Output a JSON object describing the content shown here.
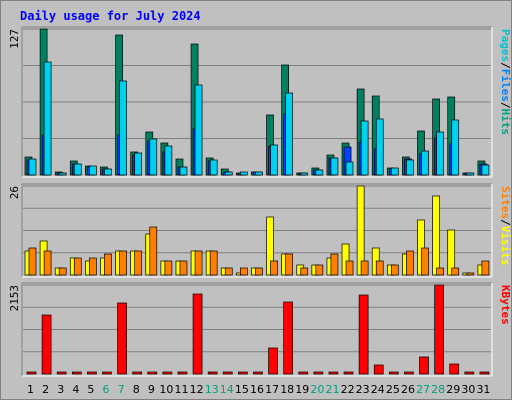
{
  "chart_data": {
    "type": "bar",
    "title": "Daily usage for July 2024",
    "days": [
      "1",
      "2",
      "3",
      "4",
      "5",
      "6",
      "7",
      "8",
      "9",
      "10",
      "11",
      "12",
      "13",
      "14",
      "15",
      "16",
      "17",
      "18",
      "19",
      "20",
      "21",
      "22",
      "23",
      "24",
      "25",
      "26",
      "27",
      "28",
      "29",
      "30",
      "31"
    ],
    "weekend_days": [
      "6",
      "7",
      "13",
      "14",
      "20",
      "21",
      "27",
      "28"
    ],
    "panels": [
      {
        "name": "top",
        "ymax_label": "127",
        "ymax": 127,
        "axis_labels": [
          "Pages",
          "/",
          "Files",
          "/",
          "Hits"
        ],
        "axis_label_colors": [
          "#00c0d0",
          "#000000",
          "#0080ff",
          "#000000",
          "#00a080"
        ],
        "series": [
          {
            "name": "Hits",
            "color": "#008060",
            "values": [
              16,
              127,
              3,
              12,
              8,
              7,
              122,
              20,
              37,
              28,
              14,
              114,
              15,
              5,
              0,
              3,
              52,
              96,
              2,
              6,
              17,
              28,
              75,
              69,
              6,
              16,
              38,
              66,
              68,
              0,
              12
            ]
          },
          {
            "name": "Files",
            "color": "#0040ff",
            "values": [
              13,
              35,
              2,
              10,
              7,
              5,
              35,
              17,
              30,
              20,
              7,
              40,
              12,
              3,
              0,
              3,
              25,
              53,
              1,
              4,
              15,
              24,
              29,
              23,
              5,
              14,
              18,
              32,
              27,
              0,
              10
            ]
          },
          {
            "name": "Pages",
            "color": "#00d0f0",
            "values": [
              14,
              98,
              2,
              10,
              8,
              5,
              82,
              19,
              31,
              25,
              7,
              78,
              13,
              3,
              3,
              3,
              26,
              71,
              2,
              4,
              15,
              11,
              47,
              49,
              6,
              13,
              21,
              37,
              48,
              0,
              9
            ]
          }
        ]
      },
      {
        "name": "middle",
        "ymax_label": "26",
        "ymax": 26,
        "axis_labels": [
          "Sites",
          "/",
          "Visits"
        ],
        "axis_label_colors": [
          "#ff8000",
          "#000000",
          "#ffff00"
        ],
        "series": [
          {
            "name": "Visits",
            "color": "#ffff00",
            "values": [
              7,
              10,
              2,
              5,
              4,
              5,
              7,
              7,
              12,
              4,
              4,
              7,
              7,
              2,
              0,
              2,
              17,
              6,
              3,
              3,
              5,
              9,
              26,
              8,
              3,
              6,
              16,
              23,
              13,
              0,
              3
            ]
          },
          {
            "name": "Sites",
            "color": "#ff8000",
            "values": [
              8,
              7,
              2,
              5,
              5,
              6,
              7,
              7,
              14,
              4,
              4,
              7,
              7,
              2,
              2,
              2,
              4,
              6,
              2,
              3,
              6,
              4,
              4,
              4,
              3,
              7,
              8,
              2,
              2,
              0,
              4
            ]
          }
        ]
      },
      {
        "name": "bottom",
        "ymax_label": "2153",
        "ymax": 2153,
        "axis_labels": [
          "KBytes"
        ],
        "axis_label_colors": [
          "#ff0000"
        ],
        "series": [
          {
            "name": "KBytes",
            "color": "#ff0000",
            "values": [
              0,
              1430,
              0,
              0,
              0,
              0,
              1720,
              0,
              0,
              0,
              0,
              1940,
              0,
              0,
              0,
              0,
              640,
              1750,
              0,
              0,
              0,
              0,
              1910,
              210,
              0,
              0,
              420,
              2153,
              250,
              0,
              0
            ]
          }
        ]
      }
    ]
  },
  "colors": {
    "background": "#c0c0c0",
    "plot_background": "#c0c0c0",
    "title": "#0000ff",
    "weekend_label": "#00a080",
    "weekday_label": "#000000"
  }
}
